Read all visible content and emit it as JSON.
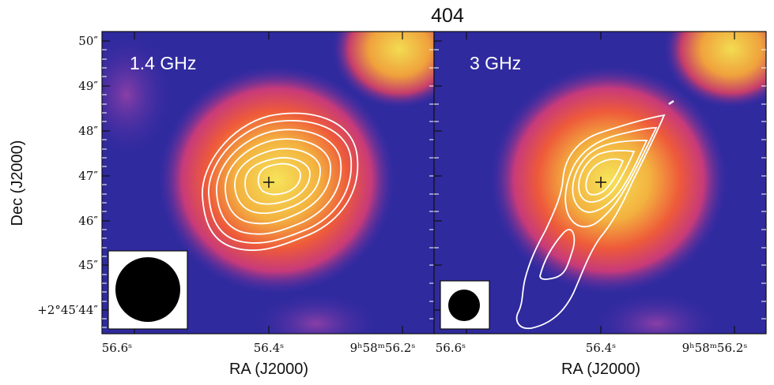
{
  "figure": {
    "title": "404",
    "ylabel": "Dec (J2000)",
    "xlabel": "RA (J2000)"
  },
  "chart_data": [
    {
      "type": "heatmap",
      "panel_label": "1.4 GHz",
      "xlabel": "RA (J2000)",
      "ylabel": "Dec (J2000)",
      "x_tick_labels": [
        "56.6ˢ",
        "56.4ˢ",
        "9ʰ58ᵐ56.2ˢ"
      ],
      "y_tick_labels": [
        "+2°45′44″",
        "45″",
        "46″",
        "47″",
        "48″",
        "49″",
        "50″"
      ],
      "ra_seconds_range": [
        56.65,
        56.15
      ],
      "dec_arcsec_range": [
        43.3,
        50.3
      ],
      "source_position": {
        "ra_s": 56.37,
        "dec_arcsec": 46.7
      },
      "contour_levels": 7,
      "beam": "large circular",
      "colormap": "plasma-like (dark blue to yellow)"
    },
    {
      "type": "heatmap",
      "panel_label": "3 GHz",
      "xlabel": "RA (J2000)",
      "x_tick_labels": [
        "56.6ˢ",
        "56.4ˢ",
        "9ʰ58ᵐ56.2ˢ"
      ],
      "ra_seconds_range": [
        56.65,
        56.15
      ],
      "dec_arcsec_range": [
        43.3,
        50.3
      ],
      "source_position": {
        "ra_s": 56.37,
        "dec_arcsec": 46.7
      },
      "contour_levels": 6,
      "beam": "small circular",
      "colormap": "plasma-like (dark blue to yellow)"
    }
  ]
}
